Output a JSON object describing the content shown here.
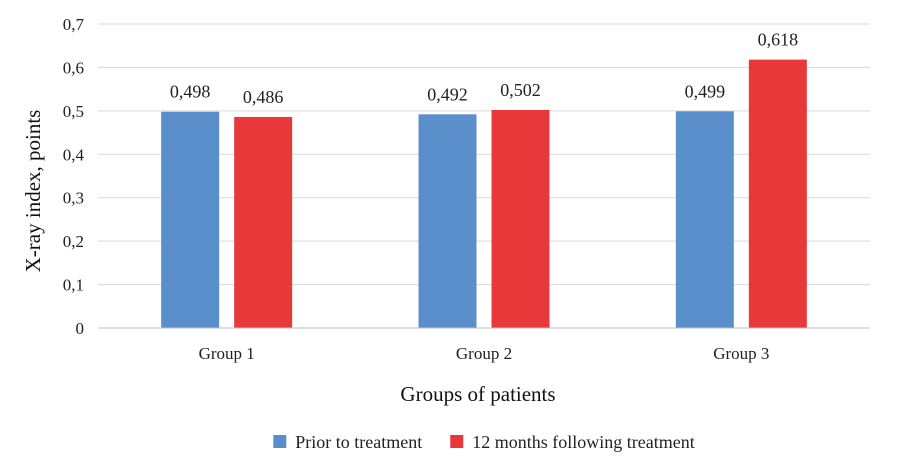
{
  "chart_data": {
    "type": "bar",
    "categories": [
      "Group 1",
      "Group 2",
      "Group 3"
    ],
    "series": [
      {
        "name": "Prior to treatment",
        "values": [
          0.498,
          0.492,
          0.499
        ],
        "labels": [
          "0,498",
          "0,492",
          "0,499"
        ],
        "color": "#5B8FCB"
      },
      {
        "name": "12 months following treatment",
        "values": [
          0.486,
          0.502,
          0.618
        ],
        "labels": [
          "0,486",
          "0,502",
          "0,618"
        ],
        "color": "#E8393A"
      }
    ],
    "title": "",
    "xlabel": "Groups of patients",
    "ylabel": "X-ray index, points",
    "ylim": [
      0,
      0.7
    ],
    "yticks": [
      0,
      0.1,
      0.2,
      0.3,
      0.4,
      0.5,
      0.6,
      0.7
    ],
    "ytick_labels": [
      "0",
      "0,1",
      "0,2",
      "0,3",
      "0,4",
      "0,5",
      "0,6",
      "0,7"
    ],
    "grid": true,
    "legend_position": "bottom"
  }
}
